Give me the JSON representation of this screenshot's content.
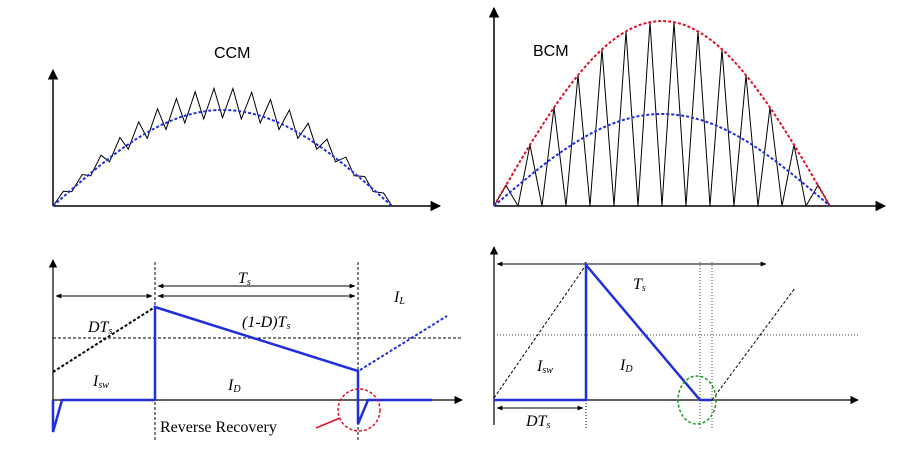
{
  "panels": {
    "ccm_envelope": {
      "title": "CCM"
    },
    "bcm_envelope": {
      "title": "BCM"
    },
    "ccm_detail": {
      "period_label": "T",
      "period_sub": "s",
      "on_time_label": "DT",
      "on_time_sub": "s",
      "off_time_label": "(1-D)T",
      "off_time_sub": "s",
      "inductor_current_label": "I",
      "inductor_current_sub": "L",
      "switch_current_label": "I",
      "switch_current_sub": "sw",
      "diode_current_label": "I",
      "diode_current_sub": "D",
      "annotation": "Reverse Recovery"
    },
    "bcm_detail": {
      "period_label": "T",
      "period_sub": "s",
      "switch_current_label": "I",
      "switch_current_sub": "sw",
      "diode_current_label": "I",
      "diode_current_sub": "D",
      "on_time_label": "DT",
      "on_time_sub": "s"
    }
  },
  "colors": {
    "waveform": "#1f2fe0",
    "envelope_red": "#e0102a",
    "annotation_red": "#e0102a",
    "ripple": "#000000",
    "axis": "#000000",
    "zero_current_marker": "#1a9a1a"
  }
}
